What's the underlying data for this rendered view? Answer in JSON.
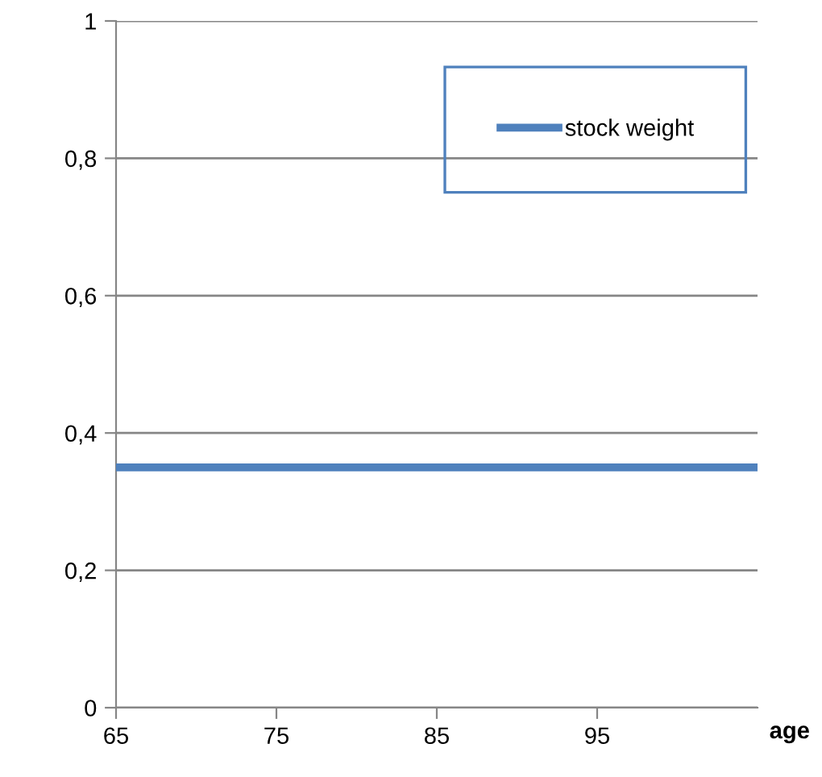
{
  "chart_data": {
    "type": "line",
    "xlabel": "age",
    "x": [
      65,
      105
    ],
    "series": [
      {
        "name": "stock weight",
        "color": "#4f81bd",
        "values": [
          0.35,
          0.35
        ]
      }
    ],
    "xlim": [
      65,
      105
    ],
    "xticks": [
      65,
      75,
      85,
      95
    ],
    "ylim": [
      0,
      1
    ],
    "yticks": [
      0,
      {
        "value": 0.2,
        "label": "0,2"
      },
      {
        "value": 0.4,
        "label": "0,4"
      },
      {
        "value": 0.6,
        "label": "0,6"
      },
      {
        "value": 0.8,
        "label": "0,8"
      },
      1
    ],
    "grid": "y",
    "legend": "top right",
    "line_style": "solid",
    "marker": "none"
  }
}
